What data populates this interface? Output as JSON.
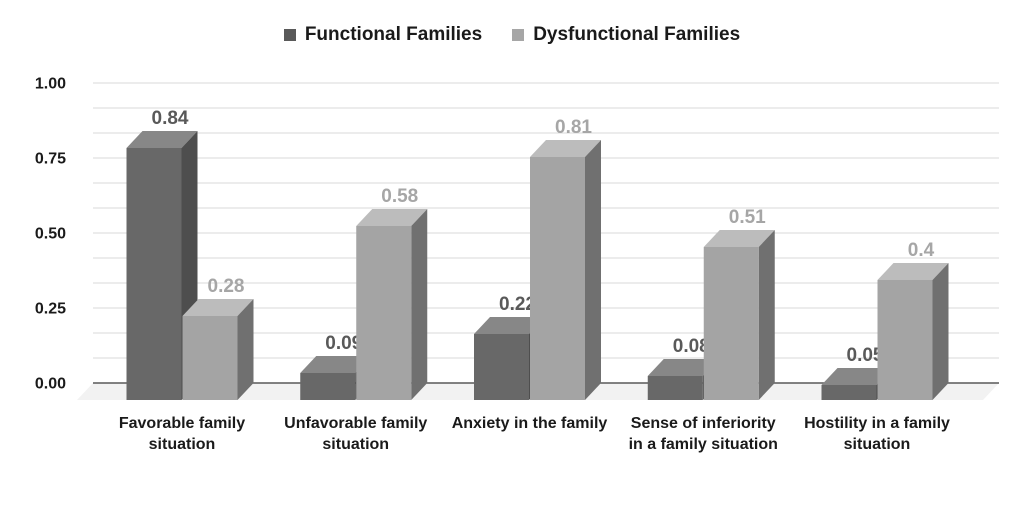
{
  "chart_data": {
    "type": "bar",
    "style": "3d-column-grouped",
    "title": "",
    "categories": [
      "Favorable family situation",
      "Unfavorable family situation",
      "Anxiety in the family",
      "Sense of inferiority in a family situation",
      "Hostility in a family situation"
    ],
    "series": [
      {
        "name": "Functional Families",
        "values": [
          0.84,
          0.09,
          0.22,
          0.08,
          0.05
        ],
        "data_labels": [
          "0.84",
          "0.09",
          "0.22",
          "0.08",
          "0.05"
        ],
        "colors": {
          "front": "#686868",
          "top": "#878787",
          "side": "#4E4E4E",
          "label_text": "#595959",
          "legend": "#595959"
        }
      },
      {
        "name": "Dysfunctional Families",
        "values": [
          0.28,
          0.58,
          0.81,
          0.51,
          0.4
        ],
        "data_labels": [
          "0.28",
          "0.58",
          "0.81",
          "0.51",
          "0.4"
        ],
        "colors": {
          "front": "#A4A4A4",
          "top": "#BCBCBC",
          "side": "#707070",
          "label_text": "#A6A6A6",
          "legend": "#A6A6A6"
        }
      }
    ],
    "y_axis": {
      "ticks": [
        "1.00",
        "0.75",
        "0.50",
        "0.25",
        "0.00"
      ],
      "min": 0,
      "max": 1,
      "major_interval": 0.25,
      "minor_divisions": 12
    },
    "legend_position": "top",
    "gridlines": true
  },
  "styles": {
    "grid_color": "#D9D9D9",
    "axis_line_color": "#595959",
    "floor_color": "#F2F2F2",
    "text_color": "#1A1A1A",
    "background": "#FFFFFF"
  }
}
